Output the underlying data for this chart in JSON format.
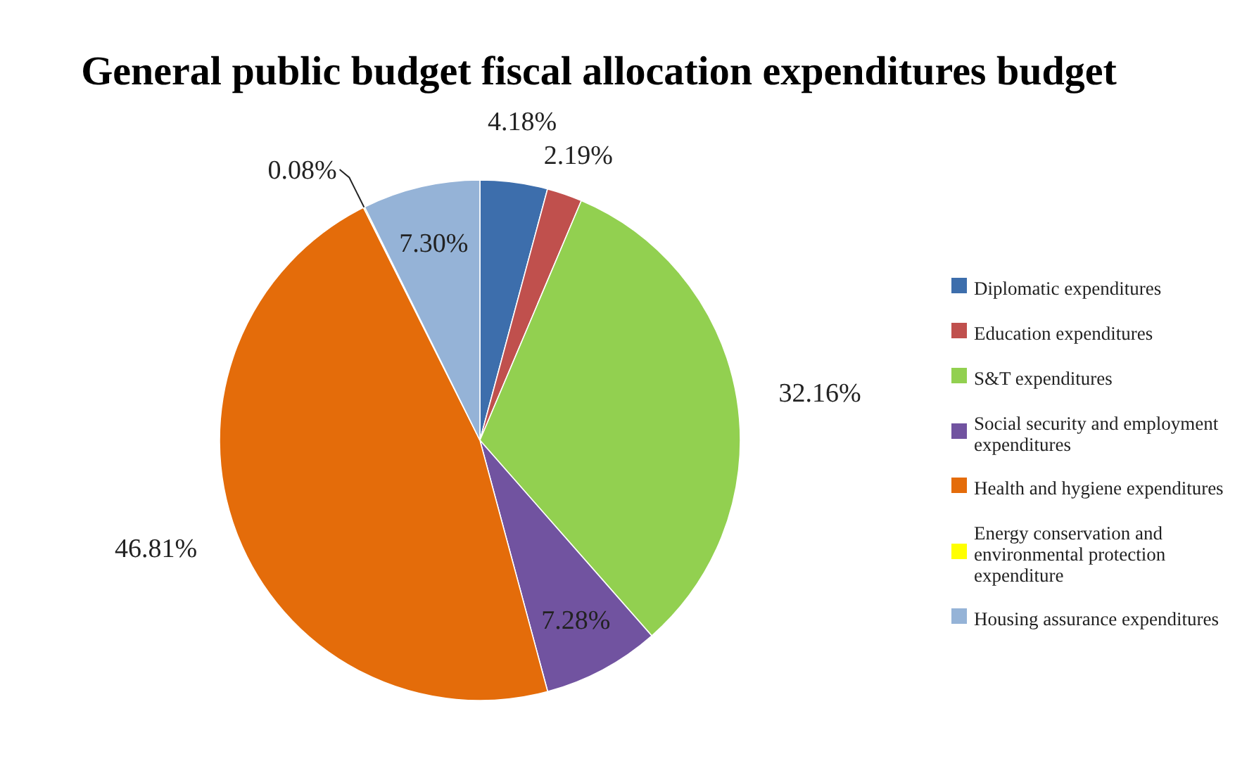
{
  "chart_data": {
    "type": "pie",
    "title": "General public budget fiscal allocation expenditures budget",
    "categories": [
      "Diplomatic expenditures",
      "Education expenditures",
      "S&T expenditures",
      "Social security and employment expenditures",
      "Health and hygiene expenditures",
      "Energy conservation and environmental protection expenditure",
      "Housing assurance expenditures"
    ],
    "values": [
      4.18,
      2.19,
      32.16,
      7.28,
      46.81,
      0.08,
      7.3
    ],
    "value_labels": [
      "4.18%",
      "2.19%",
      "32.16%",
      "7.28%",
      "46.81%",
      "0.08%",
      "7.30%"
    ],
    "colors": [
      "#3d6eac",
      "#c0504d",
      "#92d050",
      "#7153a0",
      "#e46c0a",
      "#ffff00",
      "#95b3d7"
    ],
    "data_labels": true,
    "legend": "right"
  }
}
